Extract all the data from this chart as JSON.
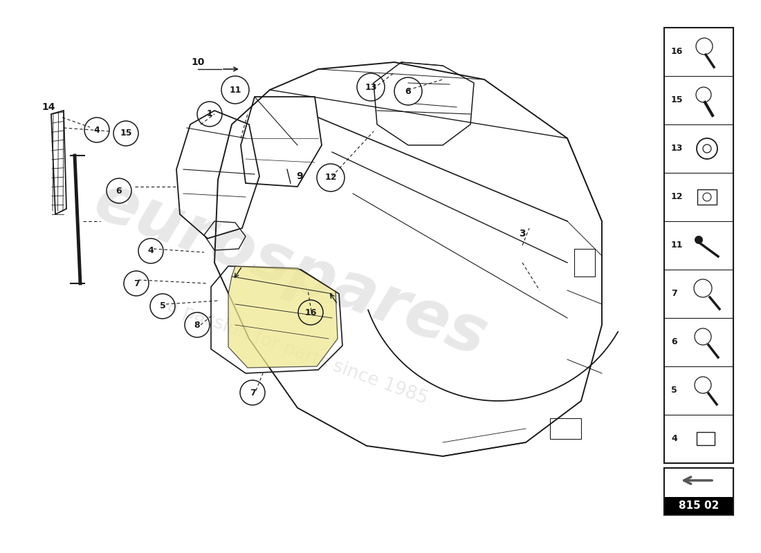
{
  "bg_color": "#ffffff",
  "lc": "#1a1a1a",
  "wc": "#cccccc",
  "diagram_id": "815 02",
  "side_items": [
    "16",
    "15",
    "13",
    "12",
    "11",
    "7",
    "6",
    "5",
    "4"
  ]
}
